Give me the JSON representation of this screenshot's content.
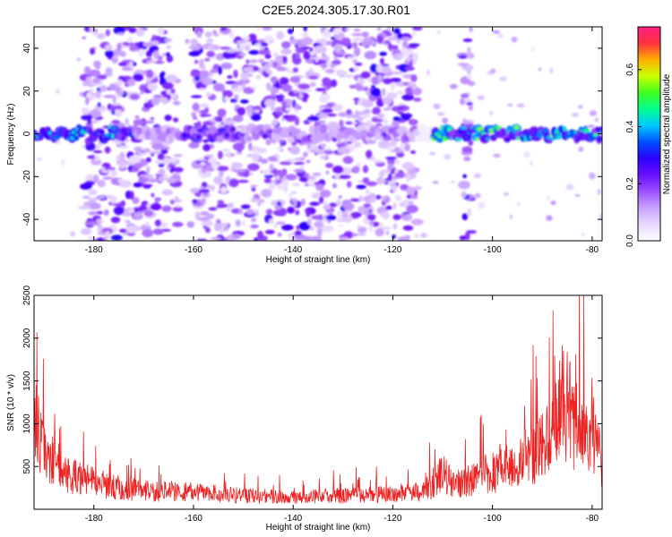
{
  "title": "C2E5.2024.305.17.30.R01",
  "chart_data": [
    {
      "type": "heatmap",
      "xlabel": "Height of straight line (km)",
      "ylabel": "Frequency (Hz)",
      "xlim": [
        -192,
        -78
      ],
      "ylim": [
        -50,
        50
      ],
      "xticks": [
        -180,
        -160,
        -140,
        -120,
        -100,
        -80
      ],
      "yticks": [
        -40,
        -20,
        0,
        20,
        40
      ],
      "grid": false,
      "colorbar": {
        "label": "Normalized spectral amplitude",
        "range": [
          0,
          0.75
        ],
        "ticks": [
          0.0,
          0.2,
          0.4,
          0.6
        ]
      },
      "main_band_frequency_hz": 0,
      "scatter_regions_km": [
        [
          -182,
          -163
        ],
        [
          -160,
          -115
        ],
        [
          -106,
          -104
        ]
      ],
      "colormap": [
        "#ffffff",
        "#e8d8ff",
        "#c9a2ff",
        "#9a50ff",
        "#6b10ff",
        "#2b00ff",
        "#0050ff",
        "#00c8ff",
        "#00ff90",
        "#40ff20",
        "#c8ff00",
        "#ffb000",
        "#ff3040",
        "#ff2080"
      ]
    },
    {
      "type": "line",
      "xlabel": "Height of straight line (km)",
      "ylabel": "SNR (10 * v/v)",
      "xlim": [
        -192,
        -78
      ],
      "ylim": [
        0,
        2500
      ],
      "xticks": [
        -180,
        -160,
        -140,
        -120,
        -100,
        -80
      ],
      "yticks": [
        500,
        1000,
        1500,
        2000,
        2500
      ],
      "grid": false,
      "color": "#ee2222",
      "series_profile": {
        "x": [
          -192,
          -190,
          -188,
          -186,
          -184,
          -182,
          -180,
          -176,
          -172,
          -168,
          -164,
          -160,
          -156,
          -152,
          -148,
          -144,
          -140,
          -136,
          -132,
          -128,
          -124,
          -120,
          -116,
          -114,
          -112,
          -110,
          -108,
          -106,
          -104,
          -102,
          -100,
          -98,
          -96,
          -94,
          -92,
          -90,
          -88,
          -86,
          -84,
          -82,
          -80,
          -78
        ],
        "y": [
          1200,
          800,
          650,
          550,
          480,
          420,
          380,
          320,
          280,
          250,
          260,
          240,
          230,
          200,
          190,
          180,
          170,
          180,
          190,
          200,
          210,
          220,
          230,
          260,
          340,
          500,
          380,
          360,
          420,
          480,
          520,
          560,
          620,
          700,
          800,
          950,
          1100,
          1500,
          1300,
          1000,
          1200,
          600
        ]
      }
    }
  ]
}
